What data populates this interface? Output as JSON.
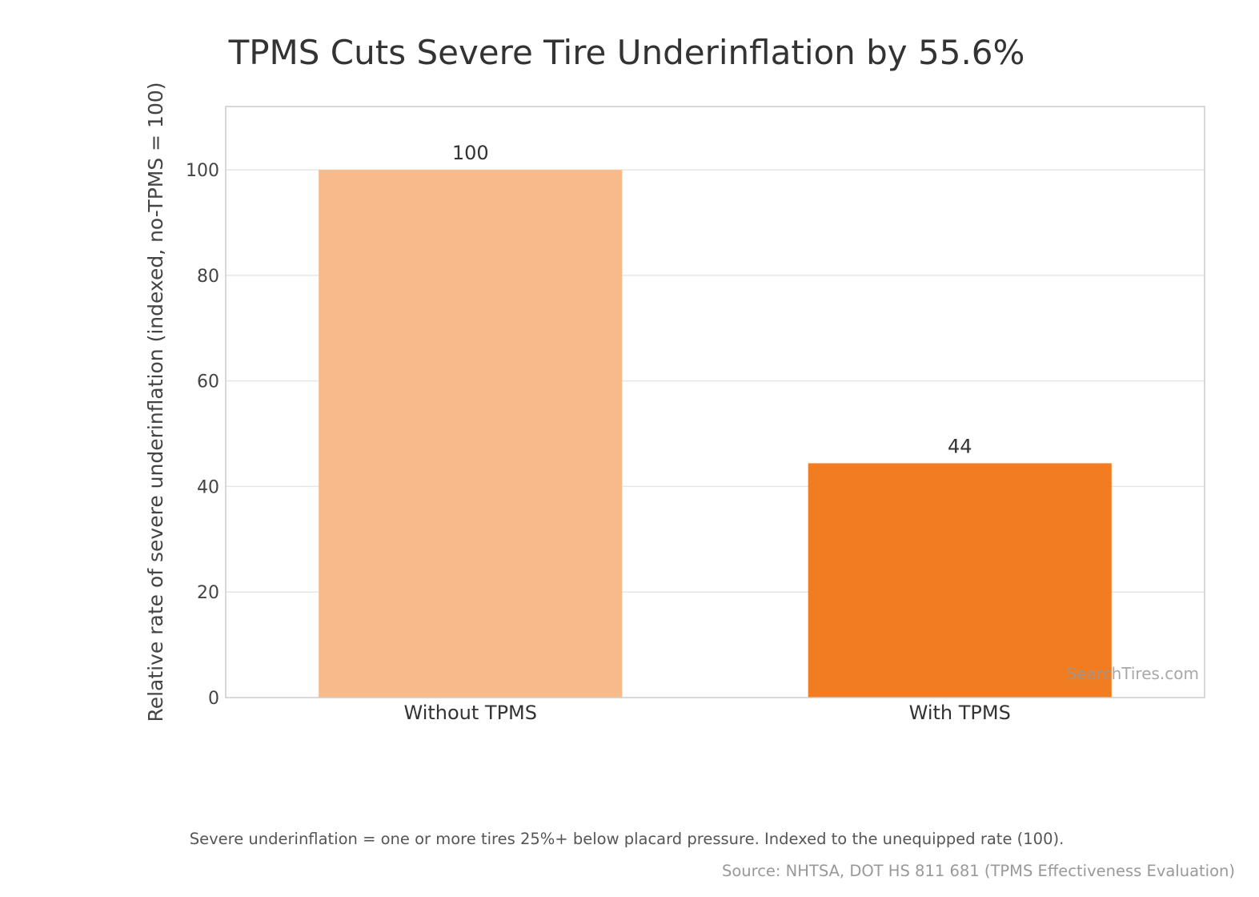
{
  "chart_data": {
    "type": "bar",
    "title": "TPMS Cuts Severe Tire Underinflation by 55.6%",
    "xlabel": "",
    "ylabel": "Relative rate of severe underinflation (indexed, no-TPMS = 100)",
    "categories": [
      "Without TPMS",
      "With TPMS"
    ],
    "values": [
      100,
      44.4
    ],
    "data_labels": [
      "100",
      "44"
    ],
    "colors": [
      "#F8B98B",
      "#F27C21"
    ],
    "ylim": [
      0,
      112
    ],
    "yticks": [
      0,
      20,
      40,
      60,
      80,
      100
    ],
    "grid": "horizontal",
    "legend": "none"
  },
  "watermark": "SearchTires.com",
  "footnote": "Severe underinflation = one or more tires 25%+ below placard pressure. Indexed to the unequipped rate (100).",
  "source": "Source: NHTSA, DOT HS 811 681 (TPMS Effectiveness Evaluation)",
  "colors": {
    "grid": "#E6E6E6",
    "frame": "#CCCCCC",
    "text": "#333333"
  }
}
